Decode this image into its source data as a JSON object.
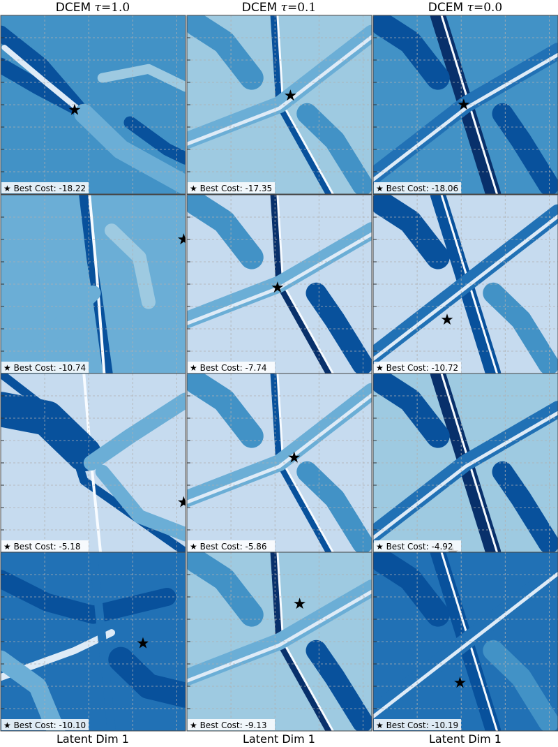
{
  "columns": [
    {
      "method": "DCEM",
      "tau_value": "1.0"
    },
    {
      "method": "DCEM",
      "tau_value": "0.1"
    },
    {
      "method": "DCEM",
      "tau_value": "0.0"
    }
  ],
  "xlabel": "Latent Dim 1",
  "legend_marker": "★",
  "best_cost_prefix": "Best Cost:",
  "palette": [
    "#f7fbff",
    "#deebf7",
    "#c6dbef",
    "#9ecae1",
    "#6baed6",
    "#4292c6",
    "#2171b5",
    "#08519c",
    "#08306b"
  ],
  "chart_data": {
    "type": "contour",
    "description_of_values": "best cost found per subplot (rows = samples, columns = tau)",
    "rows": [
      {
        "costs": [
          "-18.22",
          "-17.35",
          "-18.06"
        ]
      },
      {
        "costs": [
          "-10.74",
          "-7.74",
          "-10.72"
        ]
      },
      {
        "costs": [
          "-5.18",
          "-5.86",
          "-4.92"
        ]
      },
      {
        "costs": [
          "-10.10",
          "-9.13",
          "-10.19"
        ]
      }
    ],
    "best_points": [
      [
        [
          0.4,
          0.53
        ],
        [
          0.56,
          0.45
        ],
        [
          0.49,
          0.5
        ]
      ],
      [
        [
          0.99,
          0.25
        ],
        [
          0.49,
          0.52
        ],
        [
          0.4,
          0.7
        ]
      ],
      [
        [
          0.99,
          0.72
        ],
        [
          0.58,
          0.47
        ],
        [
          0.43,
          1.0
        ]
      ],
      [
        [
          0.77,
          0.51
        ],
        [
          0.61,
          0.29
        ],
        [
          0.47,
          0.73
        ]
      ]
    ],
    "grid": true
  }
}
